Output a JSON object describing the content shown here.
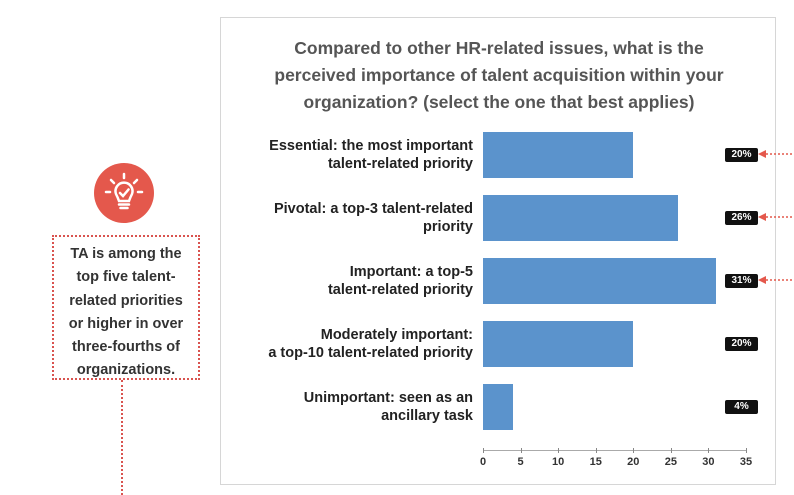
{
  "callout": {
    "icon": "lightbulb-check-icon",
    "lines": [
      "TA is among the",
      "top five talent-",
      "related priorities",
      "or higher in over",
      "three-fourths of",
      "organizations."
    ]
  },
  "chart_data": {
    "type": "bar",
    "orientation": "horizontal",
    "title_lines": [
      "Compared to other HR-related issues, what is the",
      "perceived importance of talent acquisition within your",
      "organization? (select the one that best applies)"
    ],
    "categories": [
      [
        "Essential: the most important",
        "talent-related priority"
      ],
      [
        "Pivotal: a top-3 talent-related",
        "priority"
      ],
      [
        "Important: a top-5",
        "talent-related priority"
      ],
      [
        "Moderately important:",
        "a top-10 talent-related priority"
      ],
      [
        "Unimportant: seen as an",
        "ancillary task"
      ]
    ],
    "values": [
      20,
      26,
      31,
      20,
      4
    ],
    "value_labels": [
      "20%",
      "26%",
      "31%",
      "20%",
      "4%"
    ],
    "highlighted": [
      true,
      true,
      true,
      false,
      false
    ],
    "x_ticks": [
      "0",
      "5",
      "10",
      "15",
      "20",
      "25",
      "30",
      "35"
    ],
    "xlim": [
      0,
      35
    ],
    "grid": false,
    "bar_color": "#5b93cc",
    "accent_color": "#e4584c"
  }
}
